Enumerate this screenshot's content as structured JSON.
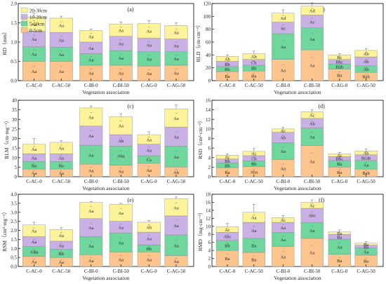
{
  "figure": {
    "legend": [
      "20-30cm",
      "10-20cm",
      "5-10cm",
      "0-5cm"
    ],
    "colors": {
      "0-5cm": "#FBC58D",
      "5-10cm": "#6FD79E",
      "10-20cm": "#C9B1E6",
      "20-30cm": "#FCF39A"
    }
  },
  "chart_data": [
    {
      "type": "bar",
      "stacked": true,
      "panel_label": "(a)",
      "categories": [
        "C-AC-0",
        "C-AC-50",
        "C-BI-0",
        "C-BI-50",
        "C-AG-0",
        "C-AG-50"
      ],
      "xlabel": "Vegetation association",
      "ylabel": "RD（mm）",
      "ylim": [
        0,
        2.0
      ],
      "yticks": [
        "0.0",
        "0.5",
        "1.0",
        "1.5",
        "2.0"
      ],
      "series": [
        {
          "name": "0-5cm",
          "values": [
            0.5,
            0.5,
            0.4,
            0.4,
            0.38,
            0.4
          ],
          "letters": [
            "Aa",
            "Aa",
            "Aa",
            "Aa",
            "Aa",
            "Aa"
          ]
        },
        {
          "name": "5-10cm",
          "values": [
            0.38,
            0.37,
            0.3,
            0.38,
            0.37,
            0.35
          ],
          "letters": [
            "Aa",
            "Aa",
            "Aa",
            "Aa",
            "Aa",
            "Aa"
          ]
        },
        {
          "name": "10-20cm",
          "values": [
            0.4,
            0.38,
            0.3,
            0.37,
            0.35,
            0.33
          ],
          "letters": [
            "Aa",
            "Aa",
            "Aa",
            "Aa",
            "Aa",
            "Aa"
          ]
        },
        {
          "name": "20-30cm",
          "values": [
            0.37,
            0.37,
            0.3,
            0.32,
            0.38,
            0.35
          ],
          "letters": [
            "Aa",
            "Aa",
            "Aa",
            "Aa",
            "Aa",
            "Aa"
          ]
        }
      ],
      "errors": [
        0.1,
        0.05,
        0.04,
        0.05,
        0.08,
        0.07
      ]
    },
    {
      "type": "bar",
      "stacked": true,
      "panel_label": "(b)",
      "categories": [
        "C-AC-0",
        "C-AC-50",
        "C-BI-0",
        "C-BI-50",
        "C-AG-0",
        "C-AG-50"
      ],
      "xlabel": "Vegetation association",
      "ylabel": "RLD（cm·cm⁻³）",
      "ylim": [
        0,
        120
      ],
      "yticks": [
        "0",
        "20",
        "40",
        "60",
        "80",
        "100",
        "120"
      ],
      "series": [
        {
          "name": "0-5cm",
          "values": [
            14,
            15,
            33,
            48,
            18,
            13
          ],
          "letters": [
            "Ba",
            "Ba",
            "Aa",
            "Aa",
            "Ba",
            "Bab"
          ]
        },
        {
          "name": "5-10cm",
          "values": [
            8,
            9,
            40,
            34,
            8,
            10
          ],
          "letters": [
            "Bb",
            "Bb",
            "Aa",
            "Aa",
            "Bab",
            "Ab"
          ]
        },
        {
          "name": "10-20cm",
          "values": [
            8,
            9,
            18,
            20,
            7,
            14
          ],
          "letters": [
            "Bb",
            "Cb",
            "Ac",
            "Ac",
            "Bbc",
            "Ab"
          ]
        },
        {
          "name": "20-30cm",
          "values": [
            8,
            9,
            14,
            14,
            7,
            10
          ],
          "letters": [
            "Ab",
            "Ab",
            "Ad",
            "Ad",
            "Bc",
            "Ab"
          ]
        }
      ],
      "errors": [
        2,
        4,
        5,
        5,
        2,
        3
      ]
    },
    {
      "type": "bar",
      "stacked": true,
      "panel_label": "(c)",
      "categories": [
        "C-AC-0",
        "C-AC-50",
        "C-BI-0",
        "C-BI-50",
        "C-AG-0",
        "C-AG-50"
      ],
      "xlabel": "Vegetation association",
      "ylabel": "RLM（cm·mg⁻¹）",
      "ylim": [
        0,
        40
      ],
      "yticks": [
        "0",
        "5",
        "10",
        "15",
        "20",
        "25",
        "30",
        "35",
        "40"
      ],
      "series": [
        {
          "name": "0-5cm",
          "values": [
            4.0,
            4.0,
            6.5,
            6.0,
            7.0,
            5.0
          ],
          "letters": [
            "Aa",
            "Aa",
            "Aa",
            "Aa",
            "Aa",
            "Ab"
          ]
        },
        {
          "name": "5-10cm",
          "values": [
            4.0,
            4.0,
            10.0,
            10.0,
            4.0,
            11.0
          ],
          "letters": [
            "Ba",
            "Ba",
            "Aa",
            "Aba",
            "Ca",
            "Aa"
          ]
        },
        {
          "name": "10-20cm",
          "values": [
            4.0,
            4.0,
            10.0,
            6.0,
            6.0,
            10.0
          ],
          "letters": [
            "Aa",
            "Aa",
            "Aa",
            "Ab",
            "Aa",
            "Aa"
          ]
        },
        {
          "name": "20-30cm",
          "values": [
            5.0,
            6.0,
            9.5,
            9.5,
            5.0,
            9.5
          ],
          "letters": [
            "Aa",
            "Aa",
            "Aa",
            "Aa",
            "Aa",
            "Aa"
          ]
        }
      ],
      "errors": [
        3.0,
        1.0,
        1.0,
        1.5,
        1.5,
        2.0
      ]
    },
    {
      "type": "bar",
      "stacked": true,
      "panel_label": "(d)",
      "categories": [
        "C-AC-0",
        "C-AC-50",
        "C-BI-0",
        "C-BI-50",
        "C-AG-0",
        "C-AG-50"
      ],
      "xlabel": "Vegetation association",
      "ylabel": "RSD（cm²·cm⁻³）",
      "ylim": [
        0,
        16
      ],
      "yticks": [
        "0",
        "2",
        "4",
        "6",
        "8",
        "10",
        "12",
        "14",
        "16"
      ],
      "series": [
        {
          "name": "0-5cm",
          "values": [
            1.9,
            2.1,
            3.6,
            6.5,
            2.0,
            1.6
          ],
          "letters": [
            "Ba",
            "Aba",
            "Aa",
            "Aa",
            "Ba",
            "Bab"
          ]
        },
        {
          "name": "5-10cm",
          "values": [
            1.0,
            1.2,
            3.5,
            3.7,
            1.4,
            1.8
          ],
          "letters": [
            "Bb",
            "Bb",
            "Aa",
            "Aa",
            "Ba",
            "Aa"
          ]
        },
        {
          "name": "10-20cm",
          "values": [
            0.8,
            1.1,
            2.2,
            2.0,
            0.8,
            1.2
          ],
          "letters": [
            "Bb",
            "Cb",
            "Ab",
            "Ab",
            "Bbc",
            "Bcab"
          ]
        },
        {
          "name": "20-30cm",
          "values": [
            0.8,
            0.9,
            0.7,
            1.4,
            0.6,
            0.8
          ],
          "letters": [
            "Ac",
            "Ac",
            "Ac",
            "Ac",
            "Ac",
            "Ab"
          ]
        }
      ],
      "errors": [
        0.3,
        0.6,
        0.3,
        0.4,
        0.3,
        0.4
      ]
    },
    {
      "type": "bar",
      "stacked": true,
      "panel_label": "(e)",
      "categories": [
        "C-AC-0",
        "C-AC-50",
        "C-BI-0",
        "C-BI-50",
        "C-AG-0",
        "C-AG-50"
      ],
      "xlabel": "Vegetation association",
      "ylabel": "RSM（cm²·mg⁻¹）",
      "ylim": [
        0,
        4.0
      ],
      "yticks": [
        "0.0",
        "0.5",
        "1.0",
        "1.5",
        "2.0",
        "2.5",
        "3.0",
        "3.5",
        "4.0"
      ],
      "series": [
        {
          "name": "0-5cm",
          "values": [
            0.55,
            0.5,
            0.65,
            0.8,
            0.8,
            0.6
          ],
          "letters": [
            "Aa",
            "Aa",
            "Aa",
            "Aa",
            "Aa",
            "Aa"
          ]
        },
        {
          "name": "5-10cm",
          "values": [
            0.55,
            0.45,
            1.0,
            1.05,
            0.4,
            1.15
          ],
          "letters": [
            "ABa",
            "Bb",
            "Aa",
            "Aa",
            "Bb",
            "Aa"
          ]
        },
        {
          "name": "10-20cm",
          "values": [
            0.55,
            0.45,
            1.0,
            0.65,
            0.7,
            1.05
          ],
          "letters": [
            "Aa",
            "Aa",
            "Aa",
            "Aa",
            "Aa",
            "Aa"
          ]
        },
        {
          "name": "20-30cm",
          "values": [
            0.65,
            0.65,
            0.9,
            0.95,
            0.55,
            0.95
          ],
          "letters": [
            "Aa",
            "Aa",
            "Aa",
            "Aa",
            "Ab",
            "Aa"
          ]
        }
      ],
      "errors": [
        0.15,
        0.1,
        0.05,
        0.05,
        0.1,
        0.1
      ]
    },
    {
      "type": "bar",
      "stacked": true,
      "panel_label": "(f)",
      "categories": [
        "C-AC-0",
        "C-AC-50",
        "C-BI-0",
        "C-BI-50",
        "C-AG-0",
        "C-AG-50"
      ],
      "xlabel": "Vegetation association",
      "ylabel": "RMD（mg·cm⁻³）",
      "ylim": [
        0,
        18
      ],
      "yticks": [
        "0",
        "2",
        "4",
        "6",
        "8",
        "10",
        "12",
        "14",
        "16",
        "18"
      ],
      "series": [
        {
          "name": "0-5cm",
          "values": [
            4.0,
            3.5,
            5.0,
            7.0,
            3.0,
            2.8
          ],
          "letters": [
            "Ba",
            "Ba",
            "Aa",
            "Aa",
            "Ba",
            "Ba"
          ]
        },
        {
          "name": "5-10cm",
          "values": [
            2.5,
            3.5,
            3.5,
            4.0,
            3.8,
            1.8
          ],
          "letters": [
            "Bb",
            "Ba",
            "Aa",
            "Aa",
            "Aa",
            "Aa"
          ]
        },
        {
          "name": "10-20cm",
          "values": [
            2.0,
            4.0,
            2.5,
            3.5,
            1.2,
            0.7
          ],
          "letters": [
            "Abc",
            "Aa",
            "Aa",
            "Abc",
            "Ba",
            "Ba"
          ]
        },
        {
          "name": "20-30cm",
          "values": [
            1.4,
            2.5,
            1.2,
            1.5,
            0.6,
            0.5
          ],
          "letters": [
            "Ac",
            "Aa",
            "Ac",
            "Ac",
            "Ba",
            "Ba"
          ]
        }
      ],
      "errors": [
        0.8,
        2.0,
        0.5,
        0.6,
        0.5,
        0.4
      ]
    }
  ]
}
